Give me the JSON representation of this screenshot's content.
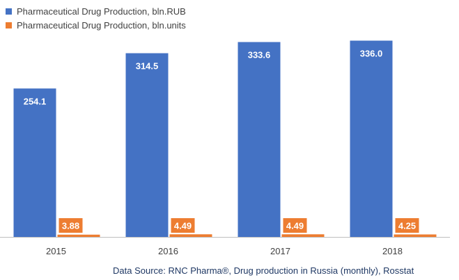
{
  "chart_data": {
    "type": "bar",
    "categories": [
      "2015",
      "2016",
      "2017",
      "2018"
    ],
    "series": [
      {
        "name": "Pharmaceutical Drug Production, bln.RUB",
        "color": "#4472c4",
        "values": [
          254.1,
          314.5,
          333.6,
          336.0
        ],
        "labels": [
          "254.1",
          "314.5",
          "333.6",
          "336.0"
        ]
      },
      {
        "name": "Pharmaceutical Drug Production, bln.units",
        "color": "#ed7d31",
        "values": [
          3.88,
          4.49,
          4.49,
          4.25
        ],
        "labels": [
          "3.88",
          "4.49",
          "4.49",
          "4.25"
        ]
      }
    ],
    "ylim": [
      0,
      358
    ],
    "grid": false,
    "legend_position": "top-left",
    "annotation": "Data Source: RNC Pharma®, Drug production in Russia (monthly), Rosstat"
  }
}
